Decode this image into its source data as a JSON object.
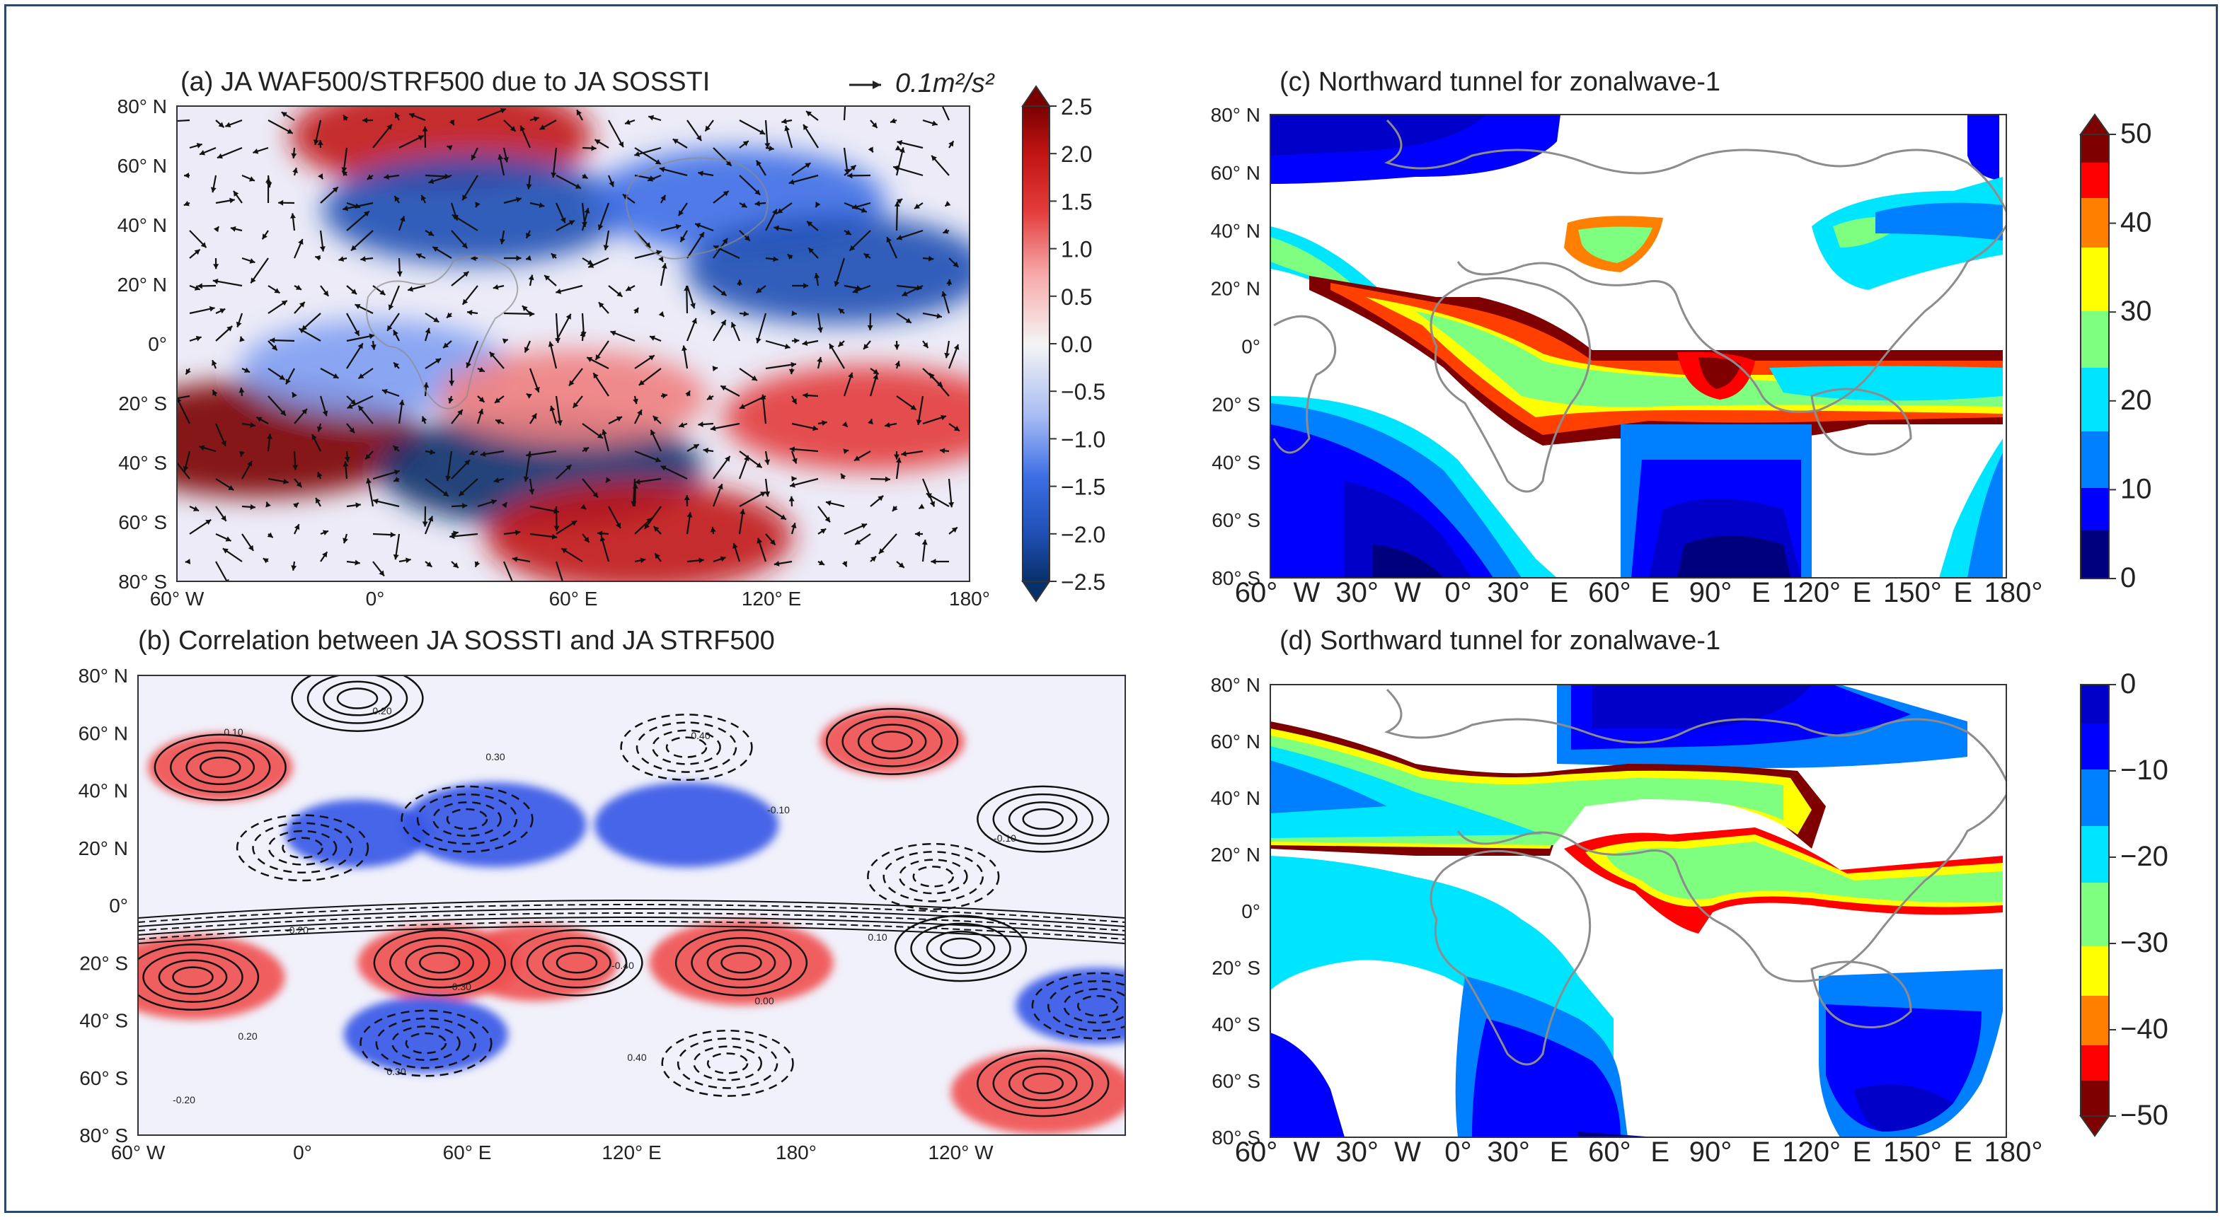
{
  "colors": {
    "rdbu": [
      "#08306b",
      "#1f4fb4",
      "#3d6ee6",
      "#7f9ef2",
      "#bccbf5",
      "#f5f5f5",
      "#f6c0c0",
      "#ef7f7f",
      "#e33b3b",
      "#c11414",
      "#7a0000"
    ],
    "jet": [
      "#00007f",
      "#0000ff",
      "#0080ff",
      "#00e5ff",
      "#7fff7f",
      "#ffff00",
      "#ff8000",
      "#ff0000",
      "#7f0000"
    ],
    "land": "#8c8c8c",
    "frame": "#2b4a6b"
  },
  "chart_data": [
    {
      "id": "a",
      "type": "heatmap",
      "title": "(a) JA WAF500/STRF500 due to JA SOSSTI",
      "quiver_key": "0.1m²/s²",
      "xticks": [
        "60° W",
        "0°",
        "60° E",
        "120° E",
        "180°"
      ],
      "xtick_values": [
        -60,
        0,
        60,
        120,
        180
      ],
      "yticks": [
        "80° N",
        "60° N",
        "40° N",
        "20° N",
        "0°",
        "20° S",
        "40° S",
        "60° S",
        "80° S"
      ],
      "xlim": [
        -60,
        180
      ],
      "ylim": [
        -80,
        80
      ],
      "colorbar": {
        "ticks": [
          "2.5",
          "2.0",
          "1.5",
          "1.0",
          "0.5",
          "0.0",
          "−0.5",
          "−1.0",
          "−1.5",
          "−2.0",
          "−2.5"
        ],
        "range": [
          -2.5,
          2.5
        ],
        "extend": "both"
      },
      "anomalies": [
        {
          "lon": 20,
          "lat": 70,
          "value": 1.8
        },
        {
          "lon": 30,
          "lat": 45,
          "value": -1.8
        },
        {
          "lon": 110,
          "lat": 48,
          "value": -1.6
        },
        {
          "lon": 140,
          "lat": 25,
          "value": -1.8
        },
        {
          "lon": -35,
          "lat": -32,
          "value": 2.3
        },
        {
          "lon": 50,
          "lat": -42,
          "value": -2.3
        },
        {
          "lon": 80,
          "lat": -65,
          "value": 1.9
        },
        {
          "lon": 150,
          "lat": -25,
          "value": 1.6
        },
        {
          "lon": 0,
          "lat": -8,
          "value": -1.0
        },
        {
          "lon": 60,
          "lat": -18,
          "value": 1.0
        }
      ]
    },
    {
      "id": "b",
      "type": "heatmap",
      "title": "(b) Correlation between JA SOSSTI and JA STRF500",
      "xticks": [
        "60° W",
        "0°",
        "60° E",
        "120° E",
        "180°",
        "120° W"
      ],
      "xtick_values": [
        -60,
        0,
        60,
        120,
        180,
        240
      ],
      "yticks": [
        "80° N",
        "60° N",
        "40° N",
        "20° N",
        "0°",
        "20° S",
        "40° S",
        "60° S",
        "80° S"
      ],
      "xlim": [
        -60,
        300
      ],
      "ylim": [
        -80,
        80
      ],
      "contour_labels": [
        "0.10",
        "0.20",
        "0.30",
        "0.40",
        "-0.10",
        "-0.20",
        "-0.30",
        "-0.40",
        "0.00"
      ],
      "anomalies": [
        {
          "lon": -30,
          "lat": 48,
          "value": 0.3
        },
        {
          "lon": 70,
          "lat": 28,
          "value": -0.5
        },
        {
          "lon": 140,
          "lat": 28,
          "value": -0.5
        },
        {
          "lon": 20,
          "lat": 25,
          "value": -0.3
        },
        {
          "lon": 215,
          "lat": 57,
          "value": 0.3
        },
        {
          "lon": -40,
          "lat": -25,
          "value": 0.5
        },
        {
          "lon": 50,
          "lat": -20,
          "value": 0.4
        },
        {
          "lon": 85,
          "lat": -20,
          "value": 0.4
        },
        {
          "lon": 160,
          "lat": -20,
          "value": 0.5
        },
        {
          "lon": 45,
          "lat": -45,
          "value": -0.4
        },
        {
          "lon": 270,
          "lat": -65,
          "value": 0.5
        },
        {
          "lon": 290,
          "lat": -35,
          "value": -0.4
        }
      ]
    },
    {
      "id": "c",
      "type": "heatmap",
      "title": "(c) Northward tunnel for zonalwave-1",
      "xticks": [
        "60°",
        "W",
        "30°",
        "W",
        "0°",
        "30°",
        "E",
        "60°",
        "E",
        "90°",
        "E",
        "120°",
        "E",
        "150°",
        "E",
        "180°"
      ],
      "yticks": [
        "80° N",
        "60° N",
        "40° N",
        "20° N",
        "0°",
        "20° S",
        "40° S",
        "60° S",
        "80° S"
      ],
      "xlim": [
        -60,
        180
      ],
      "ylim": [
        -80,
        80
      ],
      "colorbar": {
        "ticks": [
          "50",
          "40",
          "30",
          "20",
          "10",
          "0"
        ],
        "range": [
          0,
          50
        ],
        "extend": "max"
      }
    },
    {
      "id": "d",
      "type": "heatmap",
      "title": "(d) Sorthward tunnel for zonalwave-1",
      "xticks": [
        "60°",
        "W",
        "30°",
        "W",
        "0°",
        "30°",
        "E",
        "60°",
        "E",
        "90°",
        "E",
        "120°",
        "E",
        "150°",
        "E",
        "180°"
      ],
      "yticks": [
        "80° N",
        "60° N",
        "40° N",
        "20° N",
        "0°",
        "20° S",
        "40° S",
        "60° S",
        "80° S"
      ],
      "xlim": [
        -60,
        180
      ],
      "ylim": [
        -80,
        80
      ],
      "colorbar": {
        "ticks": [
          "0",
          "−10",
          "−20",
          "−30",
          "−40",
          "−50"
        ],
        "range": [
          -50,
          0
        ],
        "extend": "min"
      }
    }
  ]
}
